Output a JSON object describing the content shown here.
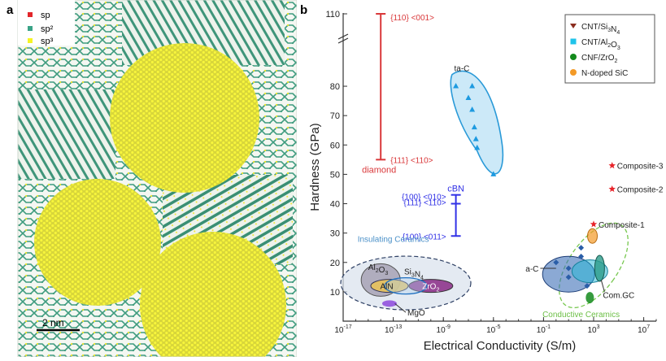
{
  "panel_a": {
    "letter": "a",
    "legend": [
      {
        "label": "sp",
        "color": "#e2262a"
      },
      {
        "label": "sp²",
        "color": "#3aa387"
      },
      {
        "label": "sp³",
        "color": "#f6f425"
      }
    ],
    "scalebar": "2 nm"
  },
  "chart_data": {
    "type": "scatter",
    "panel_letter": "b",
    "xlabel": "Electrical Conductivity (S/m)",
    "ylabel": "Hardness (GPa)",
    "x_scale": "log",
    "xlim": [
      1e-17,
      100000000.0
    ],
    "ylim": [
      0,
      110
    ],
    "y_axis_break": "between 85 and 110",
    "x_ticks": [
      "10-17",
      "10-13",
      "10-9",
      "10-5",
      "10-1",
      "103",
      "107"
    ],
    "y_ticks": [
      "10",
      "20",
      "30",
      "40",
      "50",
      "60",
      "70",
      "80",
      "110"
    ],
    "grid": false,
    "legend_position": "top-right",
    "legend": [
      {
        "label": "CNT/Si3N4",
        "marker": "triangle-down",
        "color": "#8b2d1e"
      },
      {
        "label": "CNT/Al2O3",
        "marker": "square",
        "color": "#1fc3ea"
      },
      {
        "label": "CNF/ZrO2",
        "marker": "circle",
        "color": "#138a1c"
      },
      {
        "label": "N-doped SiC",
        "marker": "circle",
        "color": "#f39a27"
      }
    ],
    "diamond": {
      "label": "diamond",
      "x": 1e-14,
      "y_min": 55,
      "y_max": 110,
      "top_label": "{110} <001>",
      "bottom_label": "{111} <110>",
      "color": "#d9383a"
    },
    "cbn": {
      "label": "cBN",
      "x": 1e-08,
      "y_min": 29,
      "y_max": 43,
      "labels": [
        "{100} <010>",
        "{111} <110>",
        "{100} <011>"
      ],
      "mid_y": 40,
      "color": "#3232e6"
    },
    "ta_c": {
      "label": "ta-C",
      "color": "#1d9ae0",
      "points": [
        [
          1e-08,
          80
        ],
        [
          2e-07,
          80
        ],
        [
          1e-07,
          76
        ],
        [
          2e-07,
          72
        ],
        [
          3e-07,
          66
        ],
        [
          4e-07,
          62
        ],
        [
          5e-07,
          59
        ],
        [
          1e-05,
          50
        ]
      ]
    },
    "a_c": {
      "label": "a-C",
      "color": "#2f66b5",
      "points": [
        [
          1.0,
          20
        ],
        [
          10.0,
          18
        ],
        [
          100.0,
          22
        ],
        [
          100.0,
          25
        ],
        [
          10.0,
          15
        ],
        [
          300.0,
          12
        ]
      ]
    },
    "composites": [
      {
        "label": "Composite-1",
        "x": 1000.0,
        "y": 33
      },
      {
        "label": "Composite-2",
        "x": 30000.0,
        "y": 45
      },
      {
        "label": "Composite-3",
        "x": 30000.0,
        "y": 53
      }
    ],
    "composite_color": "#e8242a",
    "insulating": {
      "group_label": "Insulating Ceramics",
      "materials": [
        "Al2O3",
        "Si3N4",
        "AlN",
        "ZrO2",
        "MgO"
      ]
    },
    "conductive": {
      "group_label": "Conductive Ceramics",
      "materials": [
        "Com.GC"
      ]
    }
  }
}
